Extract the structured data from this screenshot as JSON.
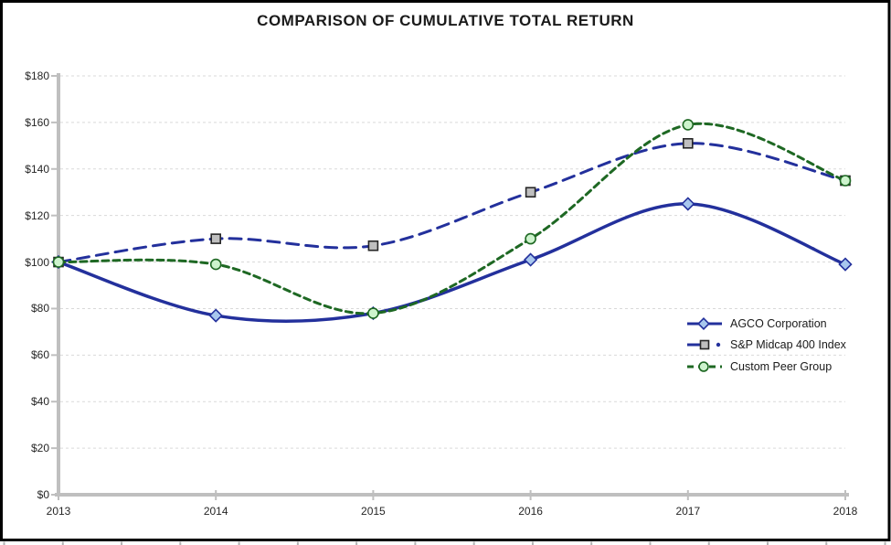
{
  "page": {
    "title": "COMPARISON OF CUMULATIVE TOTAL RETURN"
  },
  "chart_data": {
    "type": "line",
    "title": "COMPARISON OF CUMULATIVE TOTAL RETURN",
    "x_tick_labels": [
      "2013",
      "2014",
      "2015",
      "2016",
      "2017",
      "2018"
    ],
    "y_tick_labels": [
      "$0",
      "$20",
      "$40",
      "$60",
      "$80",
      "$100",
      "$120",
      "$140",
      "$160",
      "$180"
    ],
    "y_tick_values": [
      0,
      20,
      40,
      60,
      80,
      100,
      120,
      140,
      160,
      180
    ],
    "ylim": [
      0,
      180
    ],
    "grid": true,
    "legend_position": "middle-right",
    "series": [
      {
        "name": "AGCO Corporation",
        "values": [
          100,
          77,
          78,
          101,
          125,
          99
        ],
        "color": "#23309c",
        "dash": "solid",
        "marker": "diamond",
        "marker_fill": "#a8c7ee",
        "marker_stroke": "#23309c"
      },
      {
        "name": "S&P Midcap 400 Index",
        "values": [
          100,
          110,
          107,
          130,
          151,
          135
        ],
        "color": "#23309c",
        "dash": "long-dash",
        "marker": "square",
        "marker_fill": "#bfbfbf",
        "marker_stroke": "#262626",
        "legend_dot": true
      },
      {
        "name": "Custom Peer Group",
        "values": [
          100,
          99,
          78,
          110,
          159,
          135
        ],
        "color": "#1e6823",
        "dash": "short-dash",
        "marker": "circle",
        "marker_fill": "#cdf3cd",
        "marker_stroke": "#1e6823"
      }
    ],
    "axis_color": "#bfbfbf",
    "grid_color": "#d9d9d9",
    "border_color": "#000000"
  }
}
